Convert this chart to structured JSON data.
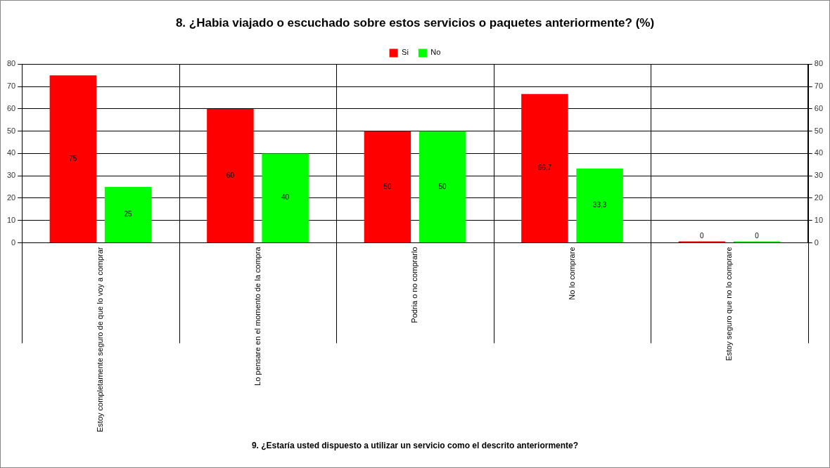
{
  "chart_data": {
    "type": "bar",
    "title": "8. ¿Habia viajado o escuchado sobre estos servicios o paquetes anteriormente? (%)",
    "categories": [
      "Estoy completamente seguro de que lo voy a comprar",
      "Lo pensare en el momento de la compra",
      "Podria o no comprarlo",
      "No lo comprare",
      "Estoy seguro que no lo comprare"
    ],
    "series": [
      {
        "name": "Si",
        "color": "#ff0000",
        "values": [
          75,
          60,
          50,
          66.7,
          0
        ],
        "value_labels": [
          "75",
          "60",
          "50",
          "66,7",
          "0"
        ]
      },
      {
        "name": "No",
        "color": "#00ff00",
        "values": [
          25,
          40,
          50,
          33.3,
          0
        ],
        "value_labels": [
          "25",
          "40",
          "50",
          "33,3",
          "0"
        ]
      }
    ],
    "ylim": [
      0,
      80
    ],
    "yticks": [
      0,
      10,
      20,
      30,
      40,
      50,
      60,
      70,
      80
    ],
    "y2lim": [
      0,
      80
    ],
    "y2ticks": [
      0,
      10,
      20,
      30,
      40,
      50,
      60,
      70,
      80
    ],
    "grid": true,
    "legend": "top",
    "annotations": [
      "9. ¿Estaría usted dispuesto a utilizar un servicio como el descrito anteriormente?"
    ]
  }
}
